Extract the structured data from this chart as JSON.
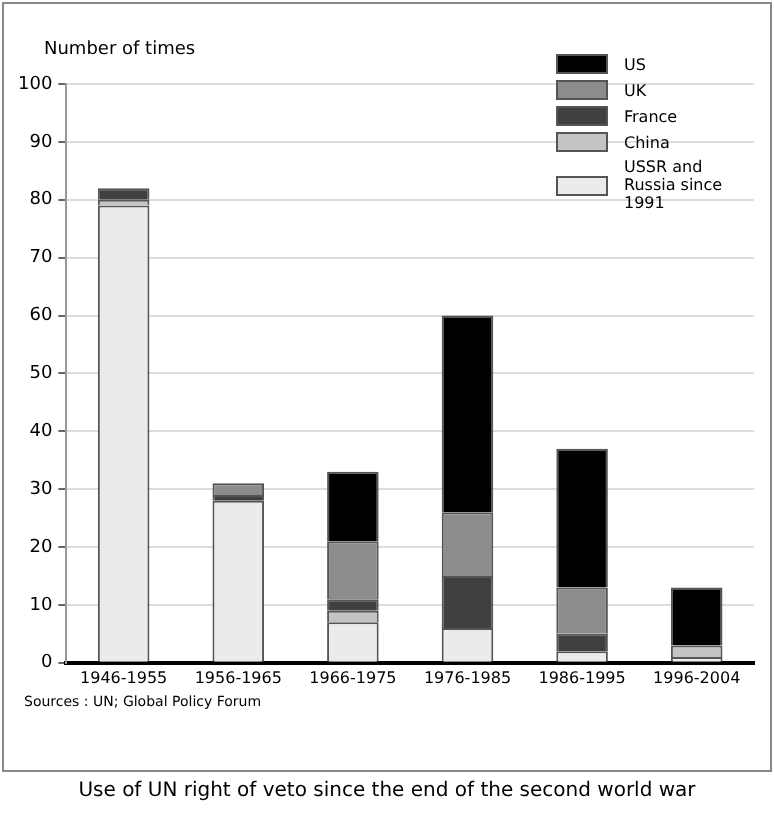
{
  "chart_data": {
    "type": "bar",
    "stacked": true,
    "title": "Use of UN right of veto since the end of the second world war",
    "ylabel": "Number of times",
    "categories": [
      "1946-1955",
      "1956-1965",
      "1966-1975",
      "1976-1985",
      "1986-1995",
      "1996-2004"
    ],
    "series": [
      {
        "name": "USSR and Russia since 1991",
        "color": "#ebebeb",
        "values": [
          79,
          28,
          7,
          6,
          2,
          1
        ]
      },
      {
        "name": "China",
        "color": "#c4c4c4",
        "values": [
          1,
          0,
          2,
          0,
          0,
          2
        ]
      },
      {
        "name": "France",
        "color": "#404040",
        "values": [
          2,
          1,
          2,
          9,
          3,
          0
        ]
      },
      {
        "name": "UK",
        "color": "#8c8c8c",
        "values": [
          0,
          2,
          10,
          11,
          8,
          0
        ]
      },
      {
        "name": "US",
        "color": "#000000",
        "values": [
          0,
          0,
          12,
          34,
          24,
          10
        ]
      }
    ],
    "ylim": [
      0,
      100
    ],
    "yticks": [
      0,
      10,
      20,
      30,
      40,
      50,
      60,
      70,
      80,
      90,
      100
    ],
    "grid": "y",
    "legend": "top right",
    "annotations": [
      "Sources : UN; Global Policy Forum"
    ]
  }
}
